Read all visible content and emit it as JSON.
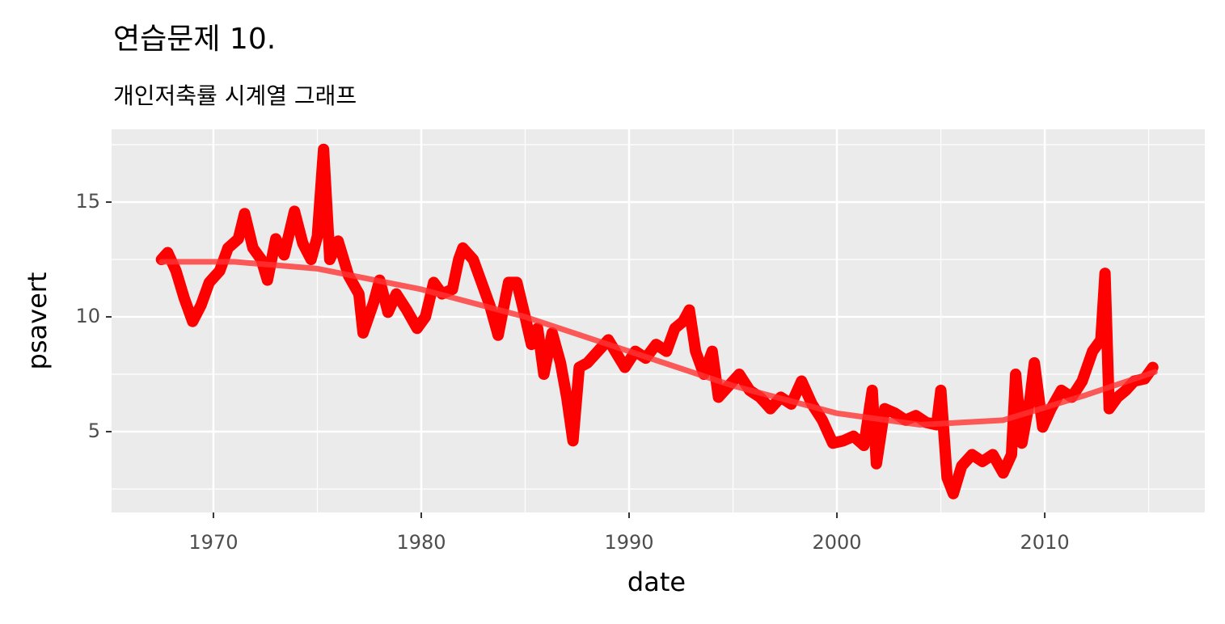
{
  "chart_data": {
    "type": "line",
    "title": "연습문제 10.",
    "subtitle": "개인저축률 시계열 그래프",
    "x_label": "date",
    "y_label": "psavert",
    "xlim": [
      1965.1,
      2017.7
    ],
    "ylim": [
      1.48,
      18.17
    ],
    "xticks": [
      1970,
      1980,
      1990,
      2000,
      2010
    ],
    "yticks": [
      5,
      10,
      15
    ],
    "x_minor_ticks": [
      1965,
      1975,
      1985,
      1995,
      2005,
      2015
    ],
    "y_minor_ticks": [
      2.5,
      7.5,
      12.5,
      17.5
    ],
    "grid": true,
    "series": [
      {
        "name": "psavert",
        "color": "#ff0000",
        "x": [
          1967.5,
          1967.8,
          1968.2,
          1968.6,
          1969.0,
          1969.4,
          1969.8,
          1970.3,
          1970.7,
          1971.2,
          1971.5,
          1971.9,
          1972.3,
          1972.6,
          1973.0,
          1973.4,
          1973.9,
          1974.3,
          1974.7,
          1975.0,
          1975.3,
          1975.6,
          1976.0,
          1976.5,
          1977.0,
          1977.2,
          1977.7,
          1978.0,
          1978.4,
          1978.8,
          1979.3,
          1979.8,
          1980.2,
          1980.6,
          1981.0,
          1981.5,
          1981.8,
          1982.0,
          1982.5,
          1982.9,
          1983.3,
          1983.7,
          1984.2,
          1984.6,
          1985.0,
          1985.3,
          1985.6,
          1985.9,
          1986.3,
          1986.7,
          1987.0,
          1987.3,
          1987.6,
          1988.0,
          1988.5,
          1989.0,
          1989.4,
          1989.8,
          1990.3,
          1990.8,
          1991.3,
          1991.8,
          1992.2,
          1992.6,
          1992.9,
          1993.2,
          1993.6,
          1994.0,
          1994.3,
          1994.8,
          1995.3,
          1995.8,
          1996.3,
          1996.8,
          1997.3,
          1997.8,
          1998.3,
          1998.8,
          1999.3,
          1999.8,
          2000.3,
          2000.8,
          2001.3,
          2001.7,
          2001.9,
          2002.3,
          2002.8,
          2003.3,
          2003.8,
          2004.3,
          2004.8,
          2005.0,
          2005.3,
          2005.6,
          2006.0,
          2006.5,
          2007.0,
          2007.5,
          2008.0,
          2008.4,
          2008.6,
          2008.9,
          2009.3,
          2009.5,
          2009.9,
          2010.3,
          2010.8,
          2011.3,
          2011.8,
          2012.3,
          2012.7,
          2012.9,
          2013.1,
          2013.5,
          2013.9,
          2014.3,
          2014.8,
          2015.2
        ],
        "values": [
          12.5,
          12.8,
          12.0,
          10.8,
          9.8,
          10.5,
          11.5,
          12.0,
          13.0,
          13.4,
          14.5,
          13.0,
          12.5,
          11.6,
          13.4,
          12.7,
          14.6,
          13.2,
          12.5,
          13.5,
          17.3,
          12.5,
          13.3,
          11.8,
          11.0,
          9.3,
          10.6,
          11.6,
          10.2,
          11.0,
          10.3,
          9.5,
          10.0,
          11.5,
          11.0,
          11.2,
          12.5,
          13.0,
          12.5,
          11.5,
          10.5,
          9.2,
          11.5,
          11.5,
          10.0,
          8.8,
          9.5,
          7.5,
          9.3,
          8.0,
          6.5,
          4.6,
          7.8,
          8.0,
          8.5,
          9.0,
          8.4,
          7.8,
          8.5,
          8.2,
          8.8,
          8.5,
          9.5,
          9.8,
          10.3,
          8.5,
          7.5,
          8.5,
          6.5,
          7.0,
          7.5,
          6.8,
          6.5,
          6.0,
          6.5,
          6.2,
          7.2,
          6.2,
          5.5,
          4.5,
          4.6,
          4.8,
          4.4,
          6.8,
          3.6,
          6.0,
          5.8,
          5.5,
          5.7,
          5.4,
          5.3,
          6.8,
          3.0,
          2.3,
          3.5,
          4.0,
          3.7,
          4.0,
          3.2,
          4.0,
          7.5,
          4.5,
          6.5,
          8.0,
          5.2,
          6.0,
          6.8,
          6.5,
          7.2,
          8.5,
          9.0,
          11.9,
          6.0,
          6.5,
          6.8,
          7.2,
          7.3,
          7.8
        ]
      },
      {
        "name": "smooth",
        "color": "#ff3333",
        "x": [
          1967.5,
          1971,
          1975,
          1980,
          1985,
          1990,
          1995,
          2000,
          2004,
          2008,
          2012,
          2015.3
        ],
        "values": [
          12.4,
          12.4,
          12.1,
          11.2,
          10.0,
          8.5,
          7.0,
          5.8,
          5.3,
          5.5,
          6.6,
          7.6
        ]
      }
    ]
  }
}
